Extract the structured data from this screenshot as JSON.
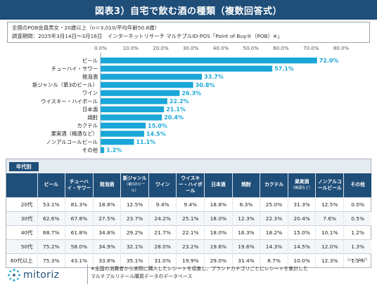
{
  "header": {
    "title": "図表3）自宅で飲む酒の種類（複数回答式）"
  },
  "info": {
    "line1": "全国のPOB会員男女・20歳以上（n＝3,010/平均年齢50.8歳）",
    "line2": "調査期間：2025年3月14日～3月16日　インターネットリサーチ マルチプルID-POS「Point of Buy®（POB）※」"
  },
  "chart_data": {
    "type": "bar",
    "orientation": "horizontal",
    "categories": [
      "ビール",
      "チューハイ・サワー",
      "発泡酒",
      "新ジャンル（第3のビール）",
      "ワイン",
      "ウイスキー・ハイボール",
      "日本酒",
      "焼酎",
      "カクテル",
      "果実酒（梅酒など）",
      "ノンアルコールビール",
      "その他"
    ],
    "values": [
      72.0,
      57.1,
      33.7,
      30.8,
      26.3,
      22.2,
      21.1,
      20.4,
      15.0,
      14.5,
      11.1,
      1.2
    ],
    "value_labels": [
      "72.0%",
      "57.1%",
      "33.7%",
      "30.8%",
      "26.3%",
      "22.2%",
      "21.1%",
      "20.4%",
      "15.0%",
      "14.5%",
      "11.1%",
      "1.2%"
    ],
    "x_ticks": [
      "0.0%",
      "10.0%",
      "20.0%",
      "30.0%",
      "40.0%",
      "50.0%",
      "60.0%",
      "70.0%",
      "80.0%"
    ],
    "xlim": [
      0,
      80
    ],
    "axis_position": "top",
    "grid": false,
    "bar_color": "#1aa7d8"
  },
  "table": {
    "title": "年代別",
    "headers": [
      {
        "main": "ビール",
        "sub": ""
      },
      {
        "main": "チューハイ・サワー",
        "sub": ""
      },
      {
        "main": "発泡酒",
        "sub": ""
      },
      {
        "main": "新ジャンル",
        "sub": "（第3のビール）"
      },
      {
        "main": "ワイン",
        "sub": ""
      },
      {
        "main": "ウイスキー・ハイボール",
        "sub": ""
      },
      {
        "main": "日本酒",
        "sub": ""
      },
      {
        "main": "焼酎",
        "sub": ""
      },
      {
        "main": "カクテル",
        "sub": ""
      },
      {
        "main": "果実酒",
        "sub": "（梅酒など）"
      },
      {
        "main": "ノンアルコールビール",
        "sub": ""
      },
      {
        "main": "その他",
        "sub": ""
      }
    ],
    "rows": [
      {
        "age": "20代",
        "values": [
          "53.1%",
          "81.3%",
          "18.8%",
          "12.5%",
          "9.4%",
          "9.4%",
          "18.8%",
          "6.3%",
          "25.0%",
          "31.3%",
          "12.5%",
          "0.0%"
        ]
      },
      {
        "age": "30代",
        "values": [
          "62.6%",
          "67.8%",
          "27.5%",
          "23.7%",
          "24.2%",
          "25.1%",
          "18.0%",
          "12.3%",
          "22.3%",
          "20.4%",
          "7.6%",
          "0.5%"
        ]
      },
      {
        "age": "40代",
        "values": [
          "68.7%",
          "61.8%",
          "34.8%",
          "29.2%",
          "21.7%",
          "22.1%",
          "18.0%",
          "16.3%",
          "18.2%",
          "15.0%",
          "10.1%",
          "1.2%"
        ]
      },
      {
        "age": "50代",
        "values": [
          "75.2%",
          "58.0%",
          "34.9%",
          "32.1%",
          "28.0%",
          "23.2%",
          "19.6%",
          "19.6%",
          "14.3%",
          "14.5%",
          "12.0%",
          "1.3%"
        ]
      },
      {
        "age": "60代以上",
        "values": [
          "75.3%",
          "43.1%",
          "33.8%",
          "35.1%",
          "31.0%",
          "19.9%",
          "29.0%",
          "31.4%",
          "8.7%",
          "10.0%",
          "12.3%",
          "1.3%"
        ]
      }
    ],
    "n_note": "（n=2,147）"
  },
  "footer": {
    "logo_text": "mitoriz",
    "logo_icon": "dotted-circle-icon",
    "note_line1": "※全国の消費者から実際に購入したレシートを収集し、ブランドカテゴリごとにレシートを集計した",
    "note_line2": "マルチプルリテール購買データのデータベース"
  }
}
